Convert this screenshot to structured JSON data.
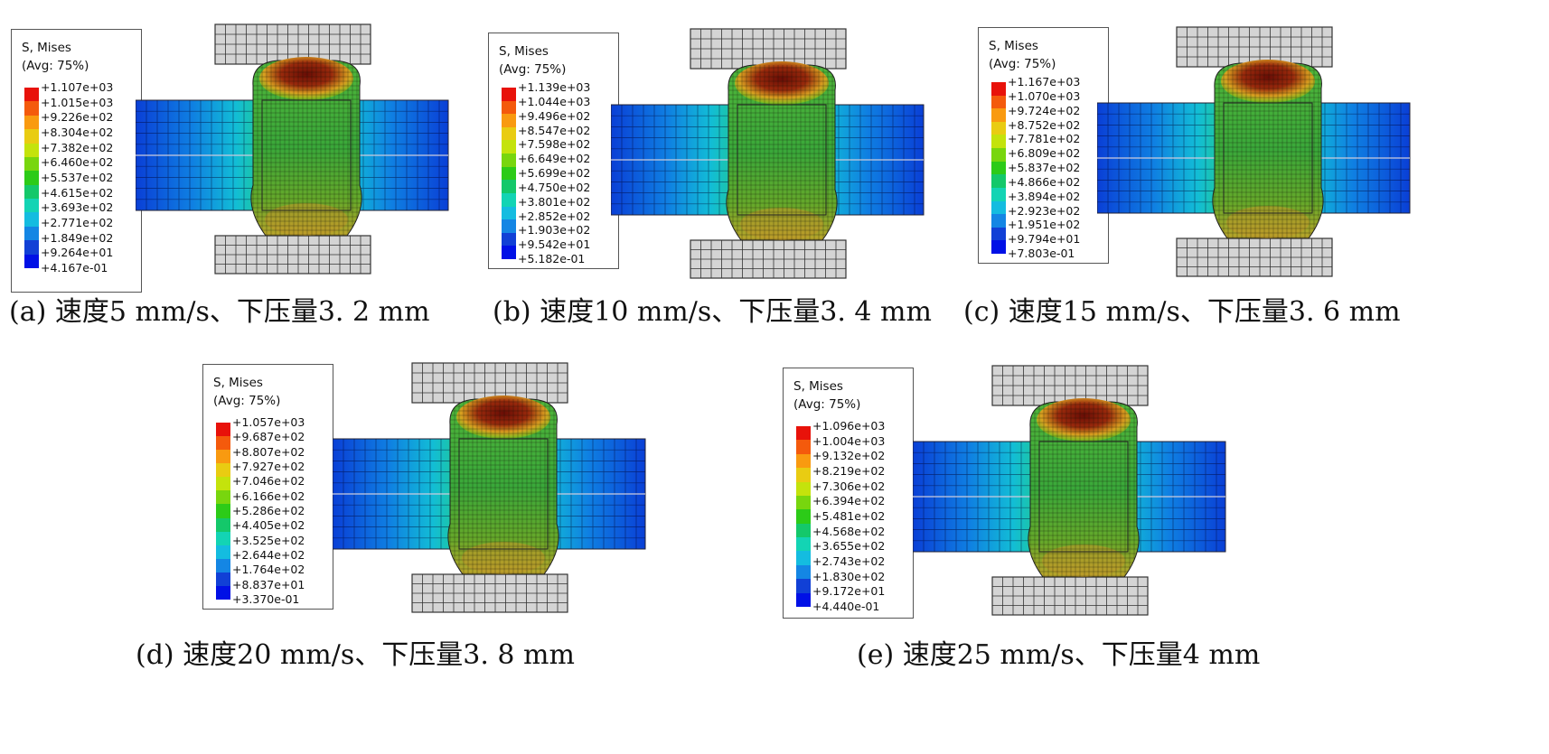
{
  "legend_title_line1": "S, Mises",
  "legend_title_line2": "(Avg: 75%)",
  "legend_colors": [
    "#e8120a",
    "#f45a0c",
    "#f99a10",
    "#e9cc12",
    "#c4e30c",
    "#78d60e",
    "#2ccb18",
    "#14c86a",
    "#13d4b4",
    "#14bce0",
    "#1486e4",
    "#1140d6",
    "#0010e6"
  ],
  "panels": [
    {
      "caption": "(a)  速度5 mm/s、下压量3. 2 mm",
      "legend_values": [
        "+1.107e+03",
        "+1.015e+03",
        "+9.226e+02",
        "+8.304e+02",
        "+7.382e+02",
        "+6.460e+02",
        "+5.537e+02",
        "+4.615e+02",
        "+3.693e+02",
        "+2.771e+02",
        "+1.849e+02",
        "+9.264e+01",
        "+4.167e-01"
      ]
    },
    {
      "caption": "(b)  速度10 mm/s、下压量3. 4 mm",
      "legend_values": [
        "+1.139e+03",
        "+1.044e+03",
        "+9.496e+02",
        "+8.547e+02",
        "+7.598e+02",
        "+6.649e+02",
        "+5.699e+02",
        "+4.750e+02",
        "+3.801e+02",
        "+2.852e+02",
        "+1.903e+02",
        "+9.542e+01",
        "+5.182e-01"
      ]
    },
    {
      "caption": "(c)  速度15 mm/s、下压量3. 6 mm",
      "legend_values": [
        "+1.167e+03",
        "+1.070e+03",
        "+9.724e+02",
        "+8.752e+02",
        "+7.781e+02",
        "+6.809e+02",
        "+5.837e+02",
        "+4.866e+02",
        "+3.894e+02",
        "+2.923e+02",
        "+1.951e+02",
        "+9.794e+01",
        "+7.803e-01"
      ]
    },
    {
      "caption": "(d)  速度20 mm/s、下压量3. 8 mm",
      "legend_values": [
        "+1.057e+03",
        "+9.687e+02",
        "+8.807e+02",
        "+7.927e+02",
        "+7.046e+02",
        "+6.166e+02",
        "+5.286e+02",
        "+4.405e+02",
        "+3.525e+02",
        "+2.644e+02",
        "+1.764e+02",
        "+8.837e+01",
        "+3.370e-01"
      ]
    },
    {
      "caption": "(e)  速度25 mm/s、下压量4 mm",
      "legend_values": [
        "+1.096e+03",
        "+1.004e+03",
        "+9.132e+02",
        "+8.219e+02",
        "+7.306e+02",
        "+6.394e+02",
        "+5.481e+02",
        "+4.568e+02",
        "+3.655e+02",
        "+2.743e+02",
        "+1.830e+02",
        "+9.172e+01",
        "+4.440e-01"
      ]
    }
  ]
}
